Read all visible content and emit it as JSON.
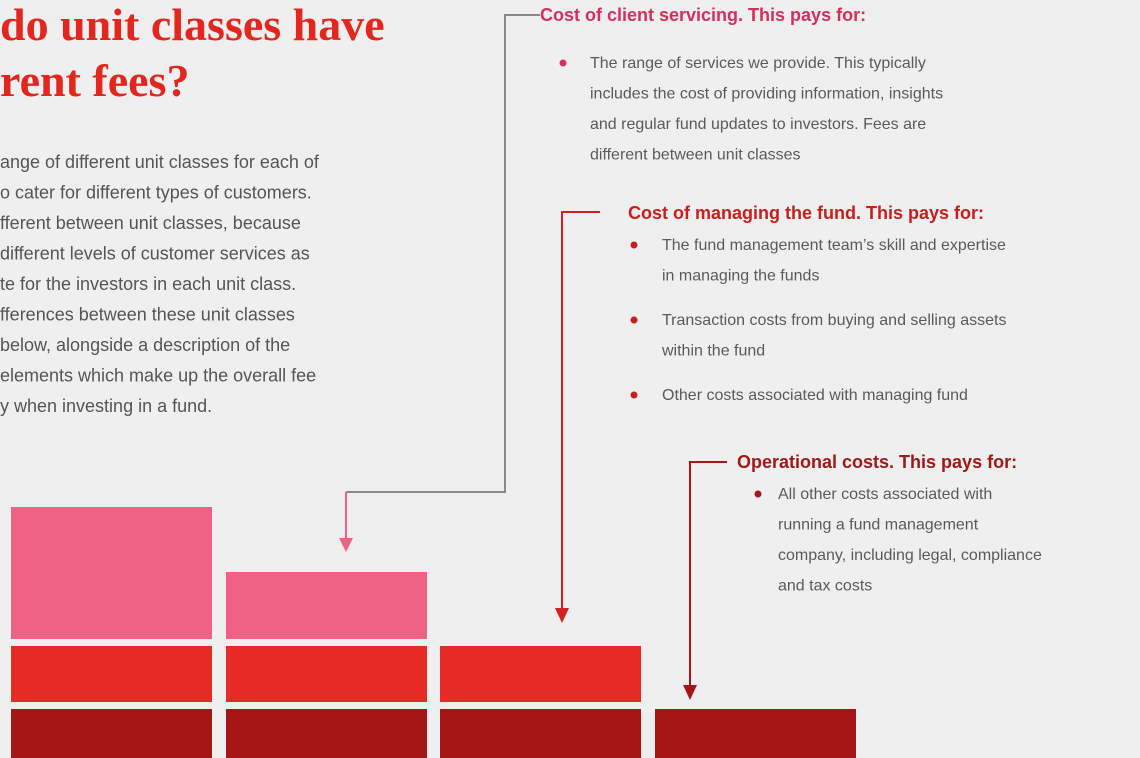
{
  "title_lines": [
    "do unit classes have",
    "rent fees?"
  ],
  "intro_lines": [
    "ange of different unit classes for each of",
    "o cater for different types of customers.",
    "fferent between unit classes, because",
    "different levels of customer services as",
    "te for the investors in each unit class.",
    "fferences between these unit classes",
    " below, alongside a description of the",
    "elements which make up the overall fee",
    "y when investing in a fund."
  ],
  "sections": [
    {
      "heading": "Cost of client servicing. This pays for:",
      "bullets": [
        {
          "lines": [
            "The range of services we provide. This typically",
            "includes the cost of providing information, insights",
            "and regular fund updates to investors. Fees are",
            "different between unit classes"
          ]
        }
      ]
    },
    {
      "heading": "Cost of managing the fund. This pays for:",
      "bullets": [
        {
          "lines": [
            "The fund management team’s skill and expertise",
            "in managing the funds"
          ]
        },
        {
          "lines": [
            "Transaction costs from buying and selling assets",
            "within the fund"
          ]
        },
        {
          "lines": [
            "Other costs associated with managing fund"
          ]
        }
      ]
    },
    {
      "heading": "Operational costs. This pays for:",
      "bullets": [
        {
          "lines": [
            "All  other costs associated with",
            "running a fund management",
            "company, including legal, compliance",
            "and tax costs"
          ]
        }
      ]
    }
  ]
}
